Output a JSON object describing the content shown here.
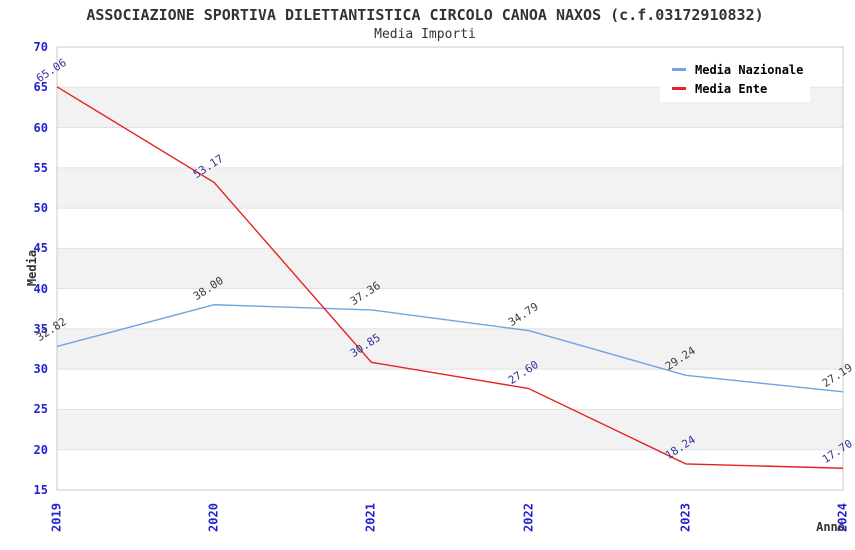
{
  "header": {
    "title": "ASSOCIAZIONE SPORTIVA DILETTANTISTICA CIRCOLO CANOA NAXOS (c.f.03172910832)",
    "subtitle": "Media Importi"
  },
  "chart_data": {
    "type": "line",
    "title": "ASSOCIAZIONE SPORTIVA DILETTANTISTICA CIRCOLO CANOA NAXOS (c.f.03172910832)",
    "subtitle": "Media Importi",
    "xlabel": "Anno",
    "ylabel": "Media",
    "x": [
      2019,
      2020,
      2021,
      2022,
      2023,
      2024
    ],
    "ylim": [
      15,
      70
    ],
    "ytick_step": 5,
    "yticks": [
      15,
      20,
      25,
      30,
      35,
      40,
      45,
      50,
      55,
      60,
      65,
      70
    ],
    "grid": "horizontal-bands",
    "legend_position": "top-right",
    "series": [
      {
        "name": "Media Nazionale",
        "color": "#6CA6E0",
        "label_color": "#3B3B3B",
        "values": [
          32.82,
          38.0,
          37.36,
          34.79,
          29.24,
          27.19
        ],
        "labels": [
          "32.82",
          "38.00",
          "37.36",
          "34.79",
          "29.24",
          "27.19"
        ]
      },
      {
        "name": "Media Ente",
        "color": "#E62222",
        "label_color": "#333399",
        "values": [
          65.06,
          53.17,
          30.85,
          27.6,
          18.24,
          17.7
        ],
        "labels": [
          "65.06",
          "53.17",
          "30.85",
          "27.60",
          "18.24",
          "17.70"
        ]
      }
    ]
  },
  "style": {
    "tick_color": "#2323CE",
    "band_color": "#F2F2F2",
    "grid_color": "#E1E1E1",
    "border_color": "#C8C8C8",
    "line_width": 1.4
  }
}
